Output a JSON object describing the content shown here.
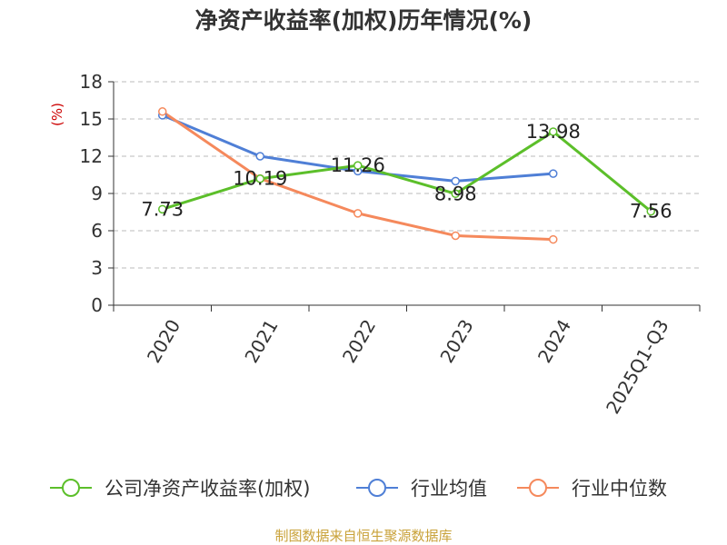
{
  "chart_data": {
    "type": "line",
    "title": "净资产收益率(加权)历年情况(%)",
    "ylabel": "(%)",
    "xlabel": "",
    "categories": [
      "2020",
      "2021",
      "2022",
      "2023",
      "2024",
      "2025Q1-Q3"
    ],
    "yticks": [
      "0",
      "3",
      "6",
      "9",
      "12",
      "15",
      "18"
    ],
    "ylim": [
      0,
      18
    ],
    "grid": true,
    "legend_position": "bottom",
    "series": [
      {
        "name": "公司净资产收益率(加权)",
        "color": "#5cbf2a",
        "values": [
          7.73,
          10.19,
          11.26,
          8.98,
          13.98,
          7.56
        ],
        "labels": [
          "7.73",
          "10.19",
          "11.26",
          "8.98",
          "13.98",
          "7.56"
        ]
      },
      {
        "name": "行业均值",
        "color": "#4f7fd6",
        "values": [
          15.3,
          12.0,
          10.8,
          10.0,
          10.6,
          null
        ]
      },
      {
        "name": "行业中位数",
        "color": "#f5895c",
        "values": [
          15.6,
          10.2,
          7.4,
          5.6,
          5.3,
          null
        ]
      }
    ],
    "source": "制图数据来自恒生聚源数据库"
  }
}
